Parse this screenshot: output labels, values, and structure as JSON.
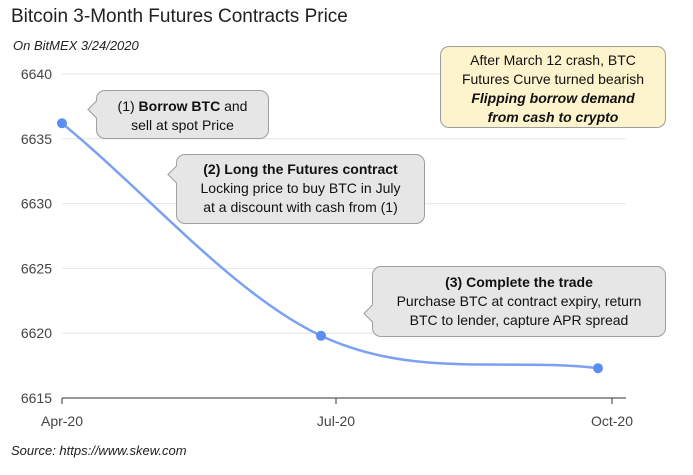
{
  "chart": {
    "title": "Bitcoin 3-Month Futures Contracts Price",
    "subtitle": "On BitMEX 3/24/2020",
    "source": "Source: https://www.skew.com"
  },
  "callouts": [
    {
      "prefix": "(1) ",
      "bold": "Borrow BTC",
      "suffix": " and",
      "line2": "sell at spot Price"
    },
    {
      "bold": "(2) Long the Futures contract",
      "line2": "Locking price to buy BTC in July",
      "line3": "at a discount with cash from (1)"
    },
    {
      "bold": "(3) Complete the trade",
      "line2": "Purchase BTC at contract expiry, return",
      "line3": "BTC to lender, capture APR spread"
    }
  ],
  "note": {
    "line1": "After March 12 crash, BTC",
    "line2": "Futures Curve turned bearish",
    "line3": "Flipping borrow demand",
    "line4": "from cash to crypto"
  },
  "colors": {
    "line": "#7ba1f0",
    "point": "#5b8ef0",
    "note_bg": "#fdf3cc",
    "callout_bg": "#e6e6e6"
  },
  "chart_data": {
    "type": "line",
    "title": "Bitcoin 3-Month Futures Contracts Price",
    "subtitle": "On BitMEX 3/24/2020",
    "x": [
      "Apr-20",
      "Jul-20",
      "Oct-20"
    ],
    "values": [
      6636.2,
      6619.8,
      6617.3
    ],
    "xlabel": "",
    "ylabel": "",
    "ylim": [
      6615,
      6640
    ],
    "yticks": [
      6615,
      6620,
      6625,
      6630,
      6635,
      6640
    ],
    "grid": true,
    "smooth": true
  }
}
